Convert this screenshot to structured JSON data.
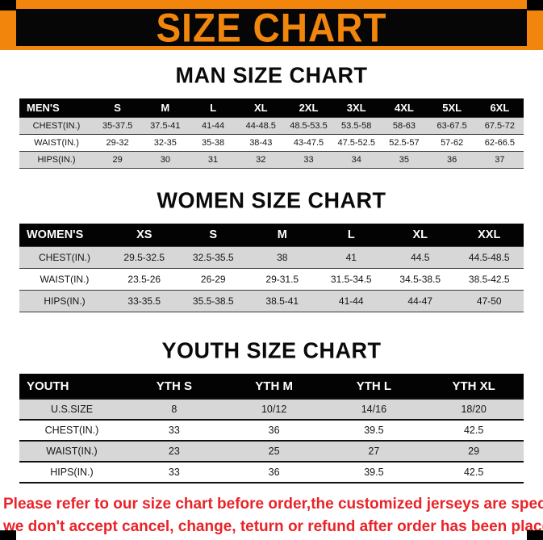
{
  "banner": {
    "title": "SIZE CHART"
  },
  "colors": {
    "accent_orange": "#F2860D",
    "banner_black": "#060606",
    "row_gray": "#d7d7d7",
    "note_red": "#ea2328"
  },
  "tables": [
    {
      "id": "men",
      "heading": "MAN SIZE CHART",
      "columns": [
        "MEN'S",
        "S",
        "M",
        "L",
        "XL",
        "2XL",
        "3XL",
        "4XL",
        "5XL",
        "6XL"
      ],
      "rows": [
        {
          "label": "CHEST(IN.)",
          "shade": "gray",
          "values": [
            "35-37.5",
            "37.5-41",
            "41-44",
            "44-48.5",
            "48.5-53.5",
            "53.5-58",
            "58-63",
            "63-67.5",
            "67.5-72"
          ]
        },
        {
          "label": "WAIST(IN.)",
          "shade": "white",
          "values": [
            "29-32",
            "32-35",
            "35-38",
            "38-43",
            "43-47.5",
            "47.5-52.5",
            "52.5-57",
            "57-62",
            "62-66.5"
          ]
        },
        {
          "label": "HIPS(IN.)",
          "shade": "gray",
          "values": [
            "29",
            "30",
            "31",
            "32",
            "33",
            "34",
            "35",
            "36",
            "37"
          ]
        }
      ]
    },
    {
      "id": "women",
      "heading": "WOMEN SIZE CHART",
      "columns": [
        "WOMEN'S",
        "XS",
        "S",
        "M",
        "L",
        "XL",
        "XXL"
      ],
      "rows": [
        {
          "label": "CHEST(IN.)",
          "shade": "gray",
          "values": [
            "29.5-32.5",
            "32.5-35.5",
            "38",
            "41",
            "44.5",
            "44.5-48.5"
          ]
        },
        {
          "label": "WAIST(IN.)",
          "shade": "white",
          "values": [
            "23.5-26",
            "26-29",
            "29-31.5",
            "31.5-34.5",
            "34.5-38.5",
            "38.5-42.5"
          ]
        },
        {
          "label": "HIPS(IN.)",
          "shade": "gray",
          "values": [
            "33-35.5",
            "35.5-38.5",
            "38.5-41",
            "41-44",
            "44-47",
            "47-50"
          ]
        }
      ]
    },
    {
      "id": "youth",
      "heading": "YOUTH SIZE CHART",
      "columns": [
        "YOUTH",
        "YTH S",
        "YTH M",
        "YTH L",
        "YTH XL"
      ],
      "rows": [
        {
          "label": "U.S.SIZE",
          "shade": "gray",
          "values": [
            "8",
            "10/12",
            "14/16",
            "18/20"
          ]
        },
        {
          "label": "CHEST(IN.)",
          "shade": "white",
          "values": [
            "33",
            "36",
            "39.5",
            "42.5"
          ]
        },
        {
          "label": "WAIST(IN.)",
          "shade": "gray",
          "values": [
            "23",
            "25",
            "27",
            "29"
          ]
        },
        {
          "label": "HIPS(IN.)",
          "shade": "white",
          "values": [
            "33",
            "36",
            "39.5",
            "42.5"
          ]
        }
      ]
    }
  ],
  "note": {
    "line1": "Please refer to our size chart before order,the customized jerseys are special products,",
    "line2": "we don't accept cancel, change, teturn or refund after order has been placed!"
  }
}
